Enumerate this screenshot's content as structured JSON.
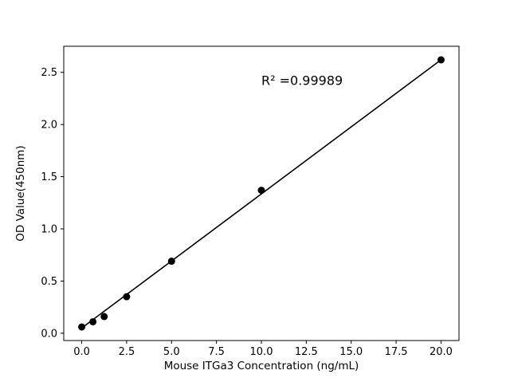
{
  "figure": {
    "background": "#ffffff"
  },
  "chart_data": {
    "type": "scatter",
    "title": "",
    "xlabel": "Mouse ITGa3 Concentration (ng/mL)",
    "ylabel": "OD Value(450nm)",
    "x": [
      0,
      0.625,
      1.25,
      2.5,
      5,
      10,
      20
    ],
    "y": [
      0.06,
      0.11,
      0.16,
      0.35,
      0.69,
      1.37,
      2.62
    ],
    "fit_line": {
      "x": [
        0,
        20
      ],
      "y": [
        0.05,
        2.62
      ]
    },
    "annotation": {
      "text": "R² =0.99989",
      "x": 10,
      "y": 2.38
    },
    "xlim": [
      -1,
      21
    ],
    "ylim": [
      -0.07,
      2.75
    ],
    "xticks": [
      0,
      2.5,
      5,
      7.5,
      10,
      12.5,
      15,
      17.5,
      20
    ],
    "xtick_labels": [
      "0.0",
      "2.5",
      "5.0",
      "7.5",
      "10.0",
      "12.5",
      "15.0",
      "17.5",
      "20.0"
    ],
    "yticks": [
      0,
      0.5,
      1,
      1.5,
      2,
      2.5
    ],
    "ytick_labels": [
      "0.0",
      "0.5",
      "1.0",
      "1.5",
      "2.0",
      "2.5"
    ],
    "grid": false,
    "legend_position": "none",
    "marker_color": "#000000",
    "line_color": "#000000",
    "axis_color": "#000000"
  }
}
